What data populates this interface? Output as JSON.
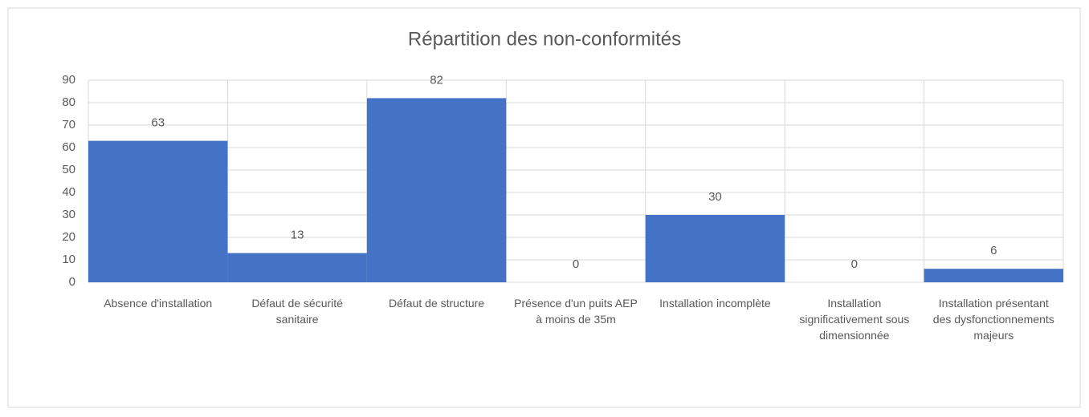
{
  "chart_data": {
    "type": "bar",
    "title": "Répartition des non-conformités",
    "categories": [
      "Absence d'installation",
      "Défaut de sécurité sanitaire",
      "Défaut de structure",
      "Présence d'un puits AEP à moins de 35m",
      "Installation incomplète",
      "Installation significativement sous dimensionnée",
      "Installation présentant des dysfonctionnements majeurs"
    ],
    "values": [
      63,
      13,
      82,
      0,
      30,
      0,
      6
    ],
    "color": "#4472c4",
    "ylim": [
      0,
      90
    ],
    "yticks": [
      0,
      10,
      20,
      30,
      40,
      50,
      60,
      70,
      80,
      90
    ],
    "grid": true
  }
}
